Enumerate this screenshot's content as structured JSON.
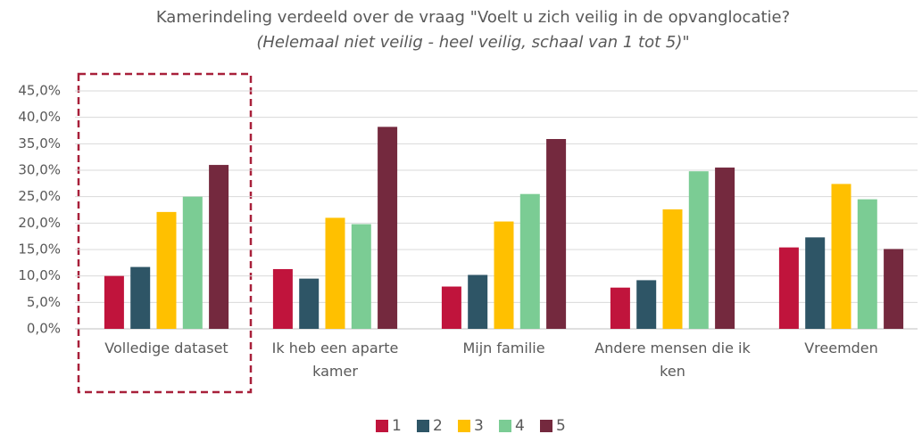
{
  "chart_data": {
    "type": "bar",
    "title": "Kamerindeling verdeeld over de vraag \"Voelt u zich veilig in de opvanglocatie?",
    "subtitle": "(Helemaal niet veilig - heel veilig, schaal van 1 tot 5)\"",
    "categories": [
      "Volledige dataset",
      "Ik heb een aparte kamer",
      "Mijn familie",
      "Andere mensen die ik ken",
      "Vreemden"
    ],
    "series": [
      {
        "name": "1",
        "color": "#c0143c",
        "values": [
          10.0,
          11.3,
          8.0,
          7.8,
          15.4
        ]
      },
      {
        "name": "2",
        "color": "#2e5566",
        "values": [
          11.7,
          9.5,
          10.2,
          9.2,
          17.3
        ]
      },
      {
        "name": "3",
        "color": "#ffc000",
        "values": [
          22.1,
          21.0,
          20.3,
          22.6,
          27.4
        ]
      },
      {
        "name": "4",
        "color": "#7bcc94",
        "values": [
          25.0,
          19.8,
          25.5,
          29.8,
          24.5
        ]
      },
      {
        "name": "5",
        "color": "#74293e",
        "values": [
          31.0,
          38.2,
          35.9,
          30.5,
          15.1
        ]
      }
    ],
    "ylim": [
      0,
      45
    ],
    "yticks": [
      {
        "value": 0,
        "label": "0,0%"
      },
      {
        "value": 5,
        "label": "5,0%"
      },
      {
        "value": 10,
        "label": "10,0%"
      },
      {
        "value": 15,
        "label": "15,0%"
      },
      {
        "value": 20,
        "label": "20,0%"
      },
      {
        "value": 25,
        "label": "25,0%"
      },
      {
        "value": 30,
        "label": "30,0%"
      },
      {
        "value": 35,
        "label": "35,0%"
      },
      {
        "value": 40,
        "label": "40,0%"
      },
      {
        "value": 45,
        "label": "45,0%"
      }
    ],
    "grid": true,
    "legend": "bottom"
  }
}
